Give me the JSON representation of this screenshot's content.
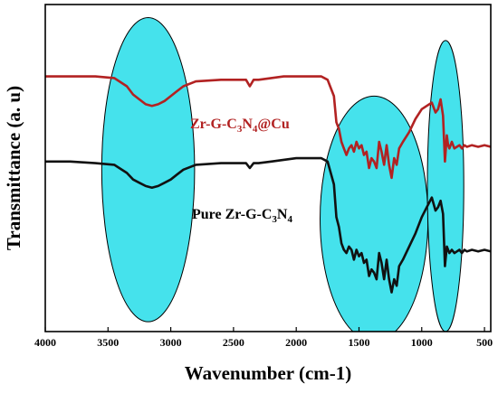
{
  "chart_data": {
    "type": "line",
    "xlabel": "Wavenumber (cm-1)",
    "ylabel": "Transmittance (a. u)",
    "xlim": [
      4000,
      450
    ],
    "xticks": [
      4000,
      3500,
      3000,
      2500,
      2000,
      1500,
      1000,
      500
    ],
    "xtick_labels": [
      "4000",
      "3500",
      "3000",
      "2500",
      "2000",
      "1500",
      "1000",
      "500"
    ],
    "ylim": [
      0,
      100
    ],
    "y_ticks_shown": false,
    "grid": false,
    "highlight_regions": [
      {
        "center": 3180,
        "half_width": 370,
        "y_top": 96,
        "y_bottom": 3
      },
      {
        "center": 1380,
        "half_width": 430,
        "y_top": 72,
        "y_bottom": -3
      },
      {
        "center": 810,
        "half_width": 145,
        "y_top": 89,
        "y_bottom": 0
      }
    ],
    "series": [
      {
        "name": "Zr-G-C3N4@Cu",
        "label_parts": [
          "Zr-G-C",
          "3",
          "N",
          "4",
          "@Cu"
        ],
        "color": "#b22222",
        "x": [
          4000,
          3800,
          3600,
          3450,
          3350,
          3300,
          3250,
          3200,
          3150,
          3100,
          3050,
          3000,
          2950,
          2900,
          2800,
          2600,
          2400,
          2370,
          2340,
          2300,
          2200,
          2100,
          2000,
          1900,
          1800,
          1750,
          1700,
          1680,
          1660,
          1640,
          1620,
          1600,
          1580,
          1560,
          1540,
          1520,
          1500,
          1480,
          1460,
          1440,
          1420,
          1400,
          1380,
          1360,
          1340,
          1320,
          1300,
          1280,
          1260,
          1240,
          1220,
          1200,
          1180,
          1150,
          1100,
          1050,
          1000,
          960,
          920,
          890,
          870,
          850,
          830,
          815,
          800,
          790,
          780,
          760,
          740,
          720,
          700,
          680,
          660,
          640,
          600,
          550,
          500,
          450
        ],
        "y": [
          78,
          78,
          78,
          77.5,
          75,
          72.5,
          71,
          69.5,
          69,
          69.5,
          70.5,
          72,
          73.5,
          75,
          76.5,
          77,
          77,
          75,
          77,
          77,
          77.5,
          78,
          78,
          78,
          78,
          77,
          72,
          64,
          62,
          58,
          56,
          54,
          56,
          57,
          55,
          58,
          56,
          57,
          54,
          55,
          50,
          53,
          52,
          50,
          58,
          55,
          51,
          57,
          51,
          47,
          53,
          51,
          56,
          58,
          61,
          65,
          68,
          69,
          70,
          67,
          68,
          71,
          66,
          52,
          60,
          57,
          56,
          58,
          56,
          56.5,
          57,
          56,
          57,
          56.5,
          57,
          56.5,
          57,
          56.5
        ]
      },
      {
        "name": "Pure Zr-G-C3N4",
        "label_parts": [
          "Pure Zr-G-C",
          "3",
          "N",
          "4"
        ],
        "color": "#111111",
        "x": [
          4000,
          3800,
          3600,
          3450,
          3350,
          3300,
          3250,
          3200,
          3150,
          3100,
          3050,
          3000,
          2950,
          2900,
          2800,
          2600,
          2400,
          2370,
          2340,
          2300,
          2200,
          2100,
          2000,
          1900,
          1800,
          1750,
          1700,
          1680,
          1660,
          1640,
          1620,
          1600,
          1580,
          1560,
          1540,
          1520,
          1500,
          1480,
          1460,
          1440,
          1420,
          1400,
          1380,
          1360,
          1340,
          1320,
          1300,
          1280,
          1260,
          1240,
          1220,
          1200,
          1180,
          1150,
          1100,
          1050,
          1000,
          960,
          920,
          890,
          870,
          850,
          830,
          815,
          800,
          790,
          780,
          760,
          740,
          720,
          700,
          680,
          660,
          640,
          600,
          550,
          500,
          450
        ],
        "y": [
          52,
          52,
          51.5,
          51,
          48.5,
          46.5,
          45.5,
          44.5,
          44,
          44.5,
          45.5,
          46.5,
          48,
          49.5,
          51,
          51.5,
          51.5,
          50,
          51.5,
          51.5,
          52,
          52.5,
          53,
          53,
          53,
          52,
          45,
          35,
          32,
          27,
          25,
          24,
          26,
          25,
          22,
          25,
          23,
          24,
          21,
          22,
          17,
          19,
          18,
          16,
          24,
          21,
          16,
          22,
          16,
          12,
          16,
          14,
          20,
          22,
          26,
          30,
          35,
          38,
          41,
          37,
          38,
          40,
          36,
          20,
          26,
          25,
          24,
          25,
          24,
          24.5,
          25,
          24,
          25,
          24.5,
          25,
          24.5,
          25,
          24.5
        ]
      }
    ]
  }
}
